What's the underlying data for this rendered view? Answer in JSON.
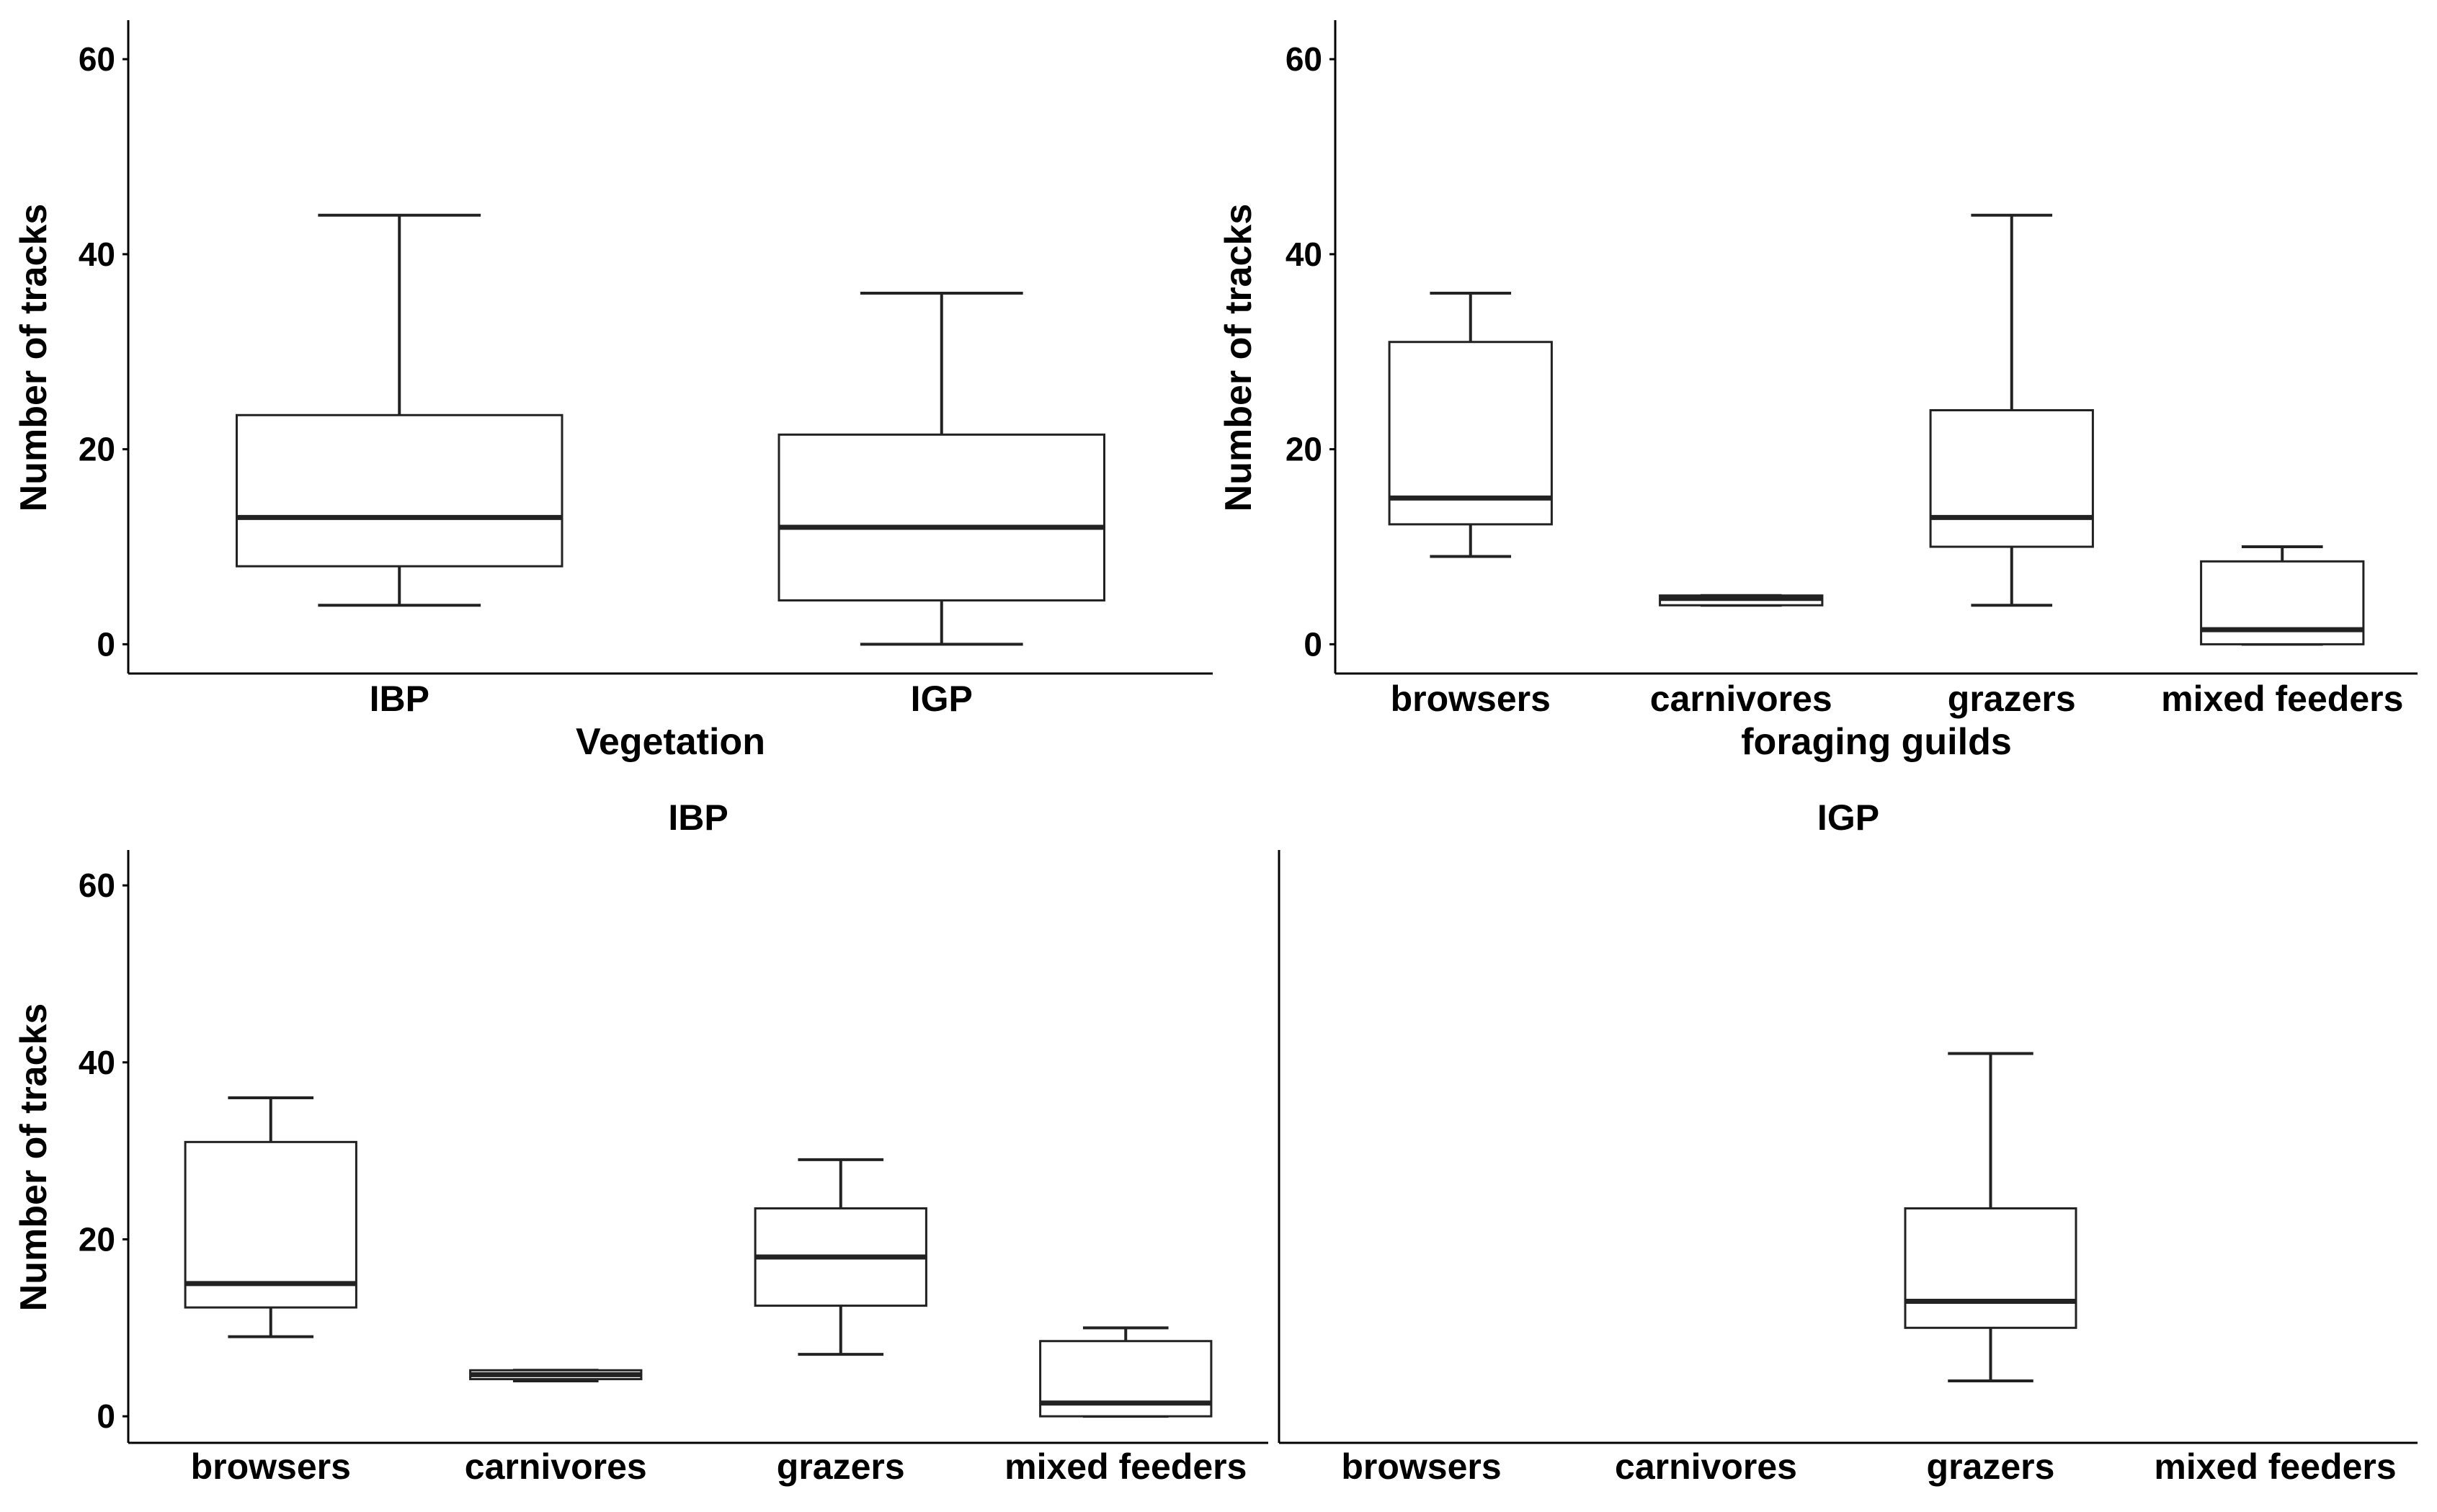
{
  "chart_data": [
    {
      "id": "p1",
      "type": "boxplot",
      "title": "",
      "xlabel": "Vegetation",
      "ylabel": "Number of tracks",
      "ylim": [
        -3,
        64
      ],
      "yticks": [
        0,
        20,
        40,
        60
      ],
      "categories": [
        "IBP",
        "IGP"
      ],
      "boxes": [
        {
          "min": 4,
          "q1": 8,
          "median": 13,
          "q3": 23.5,
          "max": 44
        },
        {
          "min": 0,
          "q1": 4.5,
          "median": 12,
          "q3": 21.5,
          "max": 36
        }
      ]
    },
    {
      "id": "p2",
      "type": "boxplot",
      "title": "",
      "xlabel": "foraging guilds",
      "ylabel": "Number of tracks",
      "ylim": [
        -3,
        64
      ],
      "yticks": [
        0,
        20,
        40,
        60
      ],
      "categories": [
        "browsers",
        "carnivores",
        "grazers",
        "mixed feeders"
      ],
      "boxes": [
        {
          "min": 9,
          "q1": 12.3,
          "median": 15,
          "q3": 31,
          "max": 36
        },
        {
          "min": 4,
          "q1": 4,
          "median": 4.7,
          "q3": 5,
          "max": 5
        },
        {
          "min": 4,
          "q1": 10,
          "median": 13,
          "q3": 24,
          "max": 44
        },
        {
          "min": 0,
          "q1": 0,
          "median": 1.5,
          "q3": 8.5,
          "max": 10
        }
      ]
    },
    {
      "id": "p3",
      "type": "boxplot",
      "title": "IBP",
      "xlabel": "",
      "ylabel": "Number of tracks",
      "ylim": [
        -3,
        64
      ],
      "yticks": [
        0,
        20,
        40,
        60
      ],
      "categories": [
        "browsers",
        "carnivores",
        "grazers",
        "mixed feeders"
      ],
      "boxes": [
        {
          "min": 9,
          "q1": 12.3,
          "median": 15,
          "q3": 31,
          "max": 36
        },
        {
          "min": 4,
          "q1": 4.2,
          "median": 4.7,
          "q3": 5.2,
          "max": 5.2
        },
        {
          "min": 7,
          "q1": 12.5,
          "median": 18,
          "q3": 23.5,
          "max": 29
        },
        {
          "min": 0,
          "q1": 0,
          "median": 1.5,
          "q3": 8.5,
          "max": 10
        }
      ]
    },
    {
      "id": "p4",
      "type": "boxplot",
      "title": "IGP",
      "xlabel": "",
      "ylabel": "",
      "ylim": [
        -3,
        64
      ],
      "yticks": [],
      "categories": [
        "browsers",
        "carnivores",
        "grazers",
        "mixed feeders"
      ],
      "boxes": [
        null,
        null,
        {
          "min": 4,
          "q1": 10,
          "median": 13,
          "q3": 23.5,
          "max": 41
        },
        null
      ]
    }
  ]
}
